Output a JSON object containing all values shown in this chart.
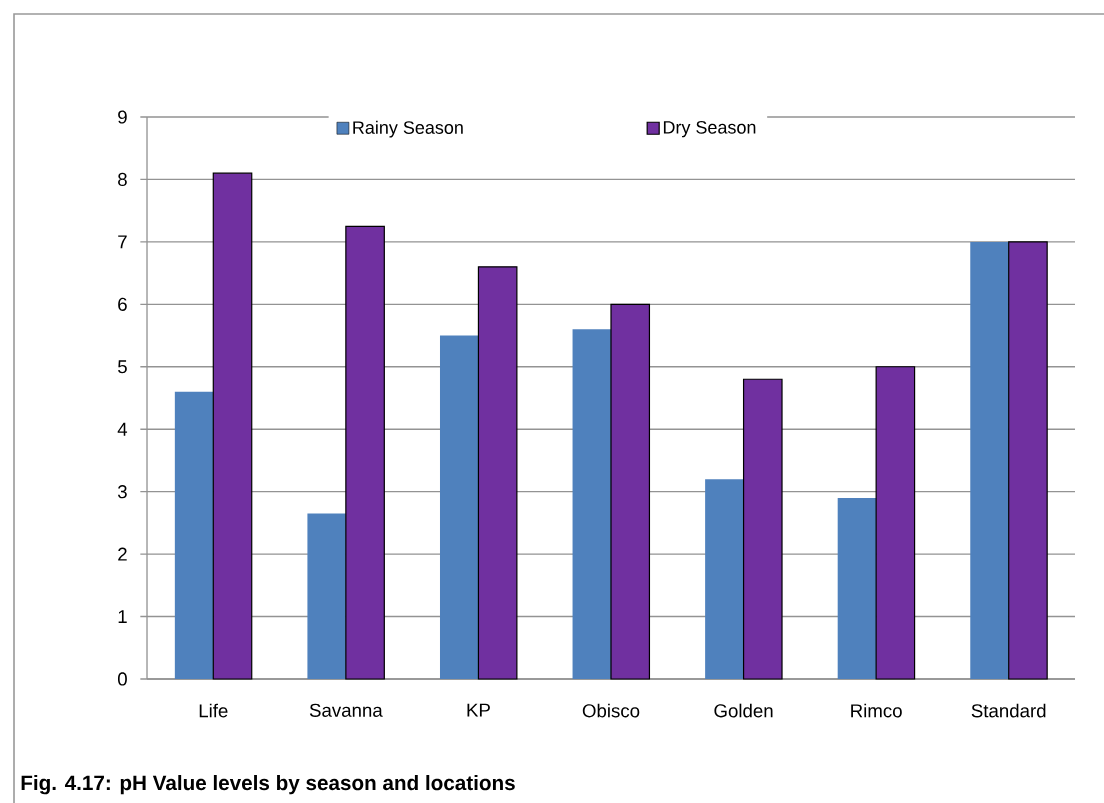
{
  "chart_data": {
    "type": "bar",
    "title": "Fig. 4.17: pH Value levels by season and locations",
    "categories": [
      "Life",
      "Savanna",
      "KP",
      "Obisco",
      "Golden",
      "Rimco",
      "Standard"
    ],
    "series": [
      {
        "name": "Rainy Season",
        "color": "#4f81bd",
        "values": [
          4.6,
          2.65,
          5.5,
          5.6,
          3.2,
          2.9,
          7.0
        ]
      },
      {
        "name": "Dry Season",
        "color": "#7030a0",
        "values": [
          8.1,
          7.25,
          6.6,
          6.0,
          4.8,
          5.0,
          7.0
        ]
      }
    ],
    "ylim": [
      0,
      9
    ],
    "yticks": [
      0,
      1,
      2,
      3,
      4,
      5,
      6,
      7,
      8,
      9
    ],
    "grid": "y",
    "legend": "top"
  }
}
